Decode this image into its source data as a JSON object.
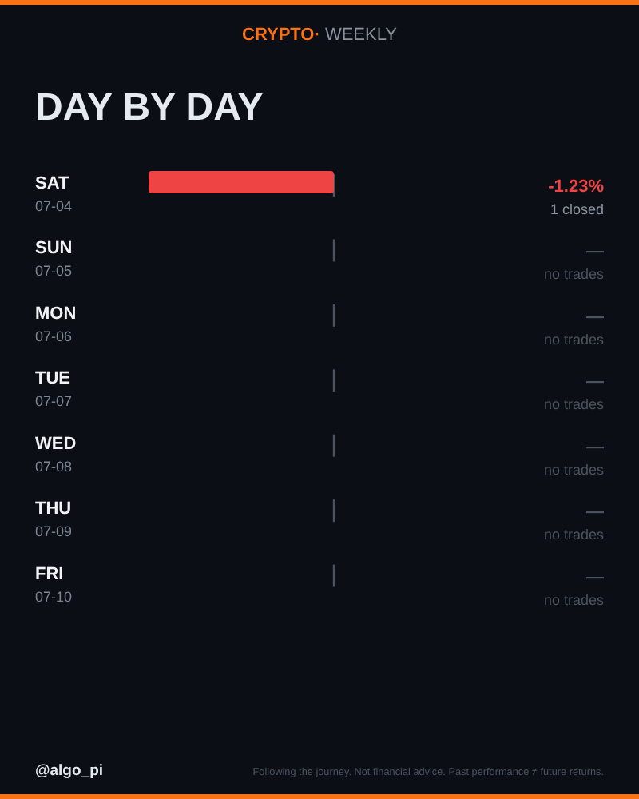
{
  "chart_data": {
    "type": "bar",
    "orientation": "horizontal",
    "subtitle": "CRYPTO· WEEKLY",
    "title": "DAY BY DAY",
    "categories": [
      "SAT\n07-04",
      "SUN\n07-05",
      "MON\n07-06",
      "TUE\n07-07",
      "WED\n07-08",
      "THU\n07-09",
      "FRI\n07-10"
    ],
    "values": [
      -1.23,
      0,
      0,
      0,
      0,
      0,
      0
    ],
    "color": "#ef4444",
    "value_labels": [
      "-1.23%\n1 closed",
      "—\nno trades",
      "—\nno trades",
      "—\nno trades",
      "—\nno trades",
      "—\nno trades",
      "—\nno trades"
    ],
    "annotations": [
      "@algo_pi",
      "Following the journey. Not financial advice. Past performance ≠ future returns."
    ]
  }
}
